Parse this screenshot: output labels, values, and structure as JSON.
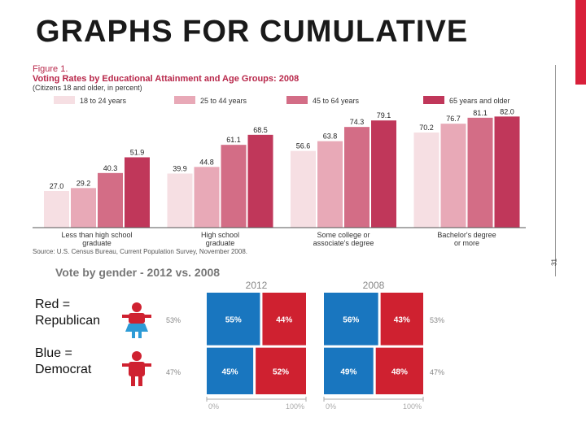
{
  "page": {
    "title": "GRAPHS FOR CUMULATIVE",
    "slide_number": "31",
    "accent_color": "#d8203a",
    "legend_text": {
      "red_line1": "Red =",
      "red_line2": "Republican",
      "blue_line1": "Blue =",
      "blue_line2": "Democrat"
    }
  },
  "chart_data": [
    {
      "type": "bar",
      "figure_label": "Figure 1.",
      "title": "Voting Rates by Educational Attainment and Age Groups: 2008",
      "subtitle": "(Citizens 18 and older, in percent)",
      "source": "Source: U.S. Census Bureau, Current Population Survey, November 2008.",
      "categories": [
        "Less than high school graduate",
        "High school graduate",
        "Some college or associate's degree",
        "Bachelor's degree or more"
      ],
      "category_lines": [
        [
          "Less than high school",
          "graduate"
        ],
        [
          "High school",
          "graduate"
        ],
        [
          "Some college or",
          "associate's degree"
        ],
        [
          "Bachelor's degree",
          "or more"
        ]
      ],
      "series": [
        {
          "name": "18 to 24 years",
          "color": "#f6dfe3",
          "values": [
            27.0,
            39.9,
            56.6,
            70.2
          ],
          "labels": [
            "27.0",
            "39.9",
            "56.6",
            "70.2"
          ]
        },
        {
          "name": "25 to 44 years",
          "color": "#e8a9b7",
          "values": [
            29.2,
            44.8,
            63.8,
            76.7
          ],
          "labels": [
            "29.2",
            "44.8",
            "63.8",
            "76.7"
          ]
        },
        {
          "name": "45 to 64 years",
          "color": "#d36d86",
          "values": [
            40.3,
            61.1,
            74.3,
            81.1
          ],
          "labels": [
            "40.3",
            "61.1",
            "74.3",
            "81.1"
          ]
        },
        {
          "name": "65 years and older",
          "color": "#c0375a",
          "values": [
            51.9,
            68.5,
            79.1,
            82.0
          ],
          "labels": [
            "51.9",
            "68.5",
            "79.1",
            "82.0"
          ]
        }
      ],
      "ylim": [
        0,
        90
      ],
      "grid": false
    },
    {
      "type": "mosaic",
      "title": "Vote by gender - 2012 vs. 2008",
      "panels": [
        {
          "year": "2012",
          "cells": [
            [
              "55%",
              "44%"
            ],
            [
              "45%",
              "52%"
            ]
          ],
          "split_fractions": [
            0.55,
            0.48
          ],
          "female_share": "53%",
          "male_share": "47%",
          "row_fractions": [
            0.53,
            0.47
          ]
        },
        {
          "year": "2008",
          "cells": [
            [
              "56%",
              "43%"
            ],
            [
              "49%",
              "48%"
            ]
          ],
          "split_fractions": [
            0.56,
            0.51
          ],
          "female_share": "53%",
          "male_share": "47%",
          "row_fractions": [
            0.53,
            0.47
          ]
        }
      ],
      "left_labels": {
        "female": "53%",
        "male": "47%"
      },
      "axis_ticks": [
        "0%",
        "100%"
      ],
      "colors": {
        "democrat": "#1976bf",
        "republican": "#cf2130",
        "female_icon": "#cf2130",
        "female_skirt": "#2d9bd6",
        "male_icon": "#cf2130"
      }
    }
  ]
}
